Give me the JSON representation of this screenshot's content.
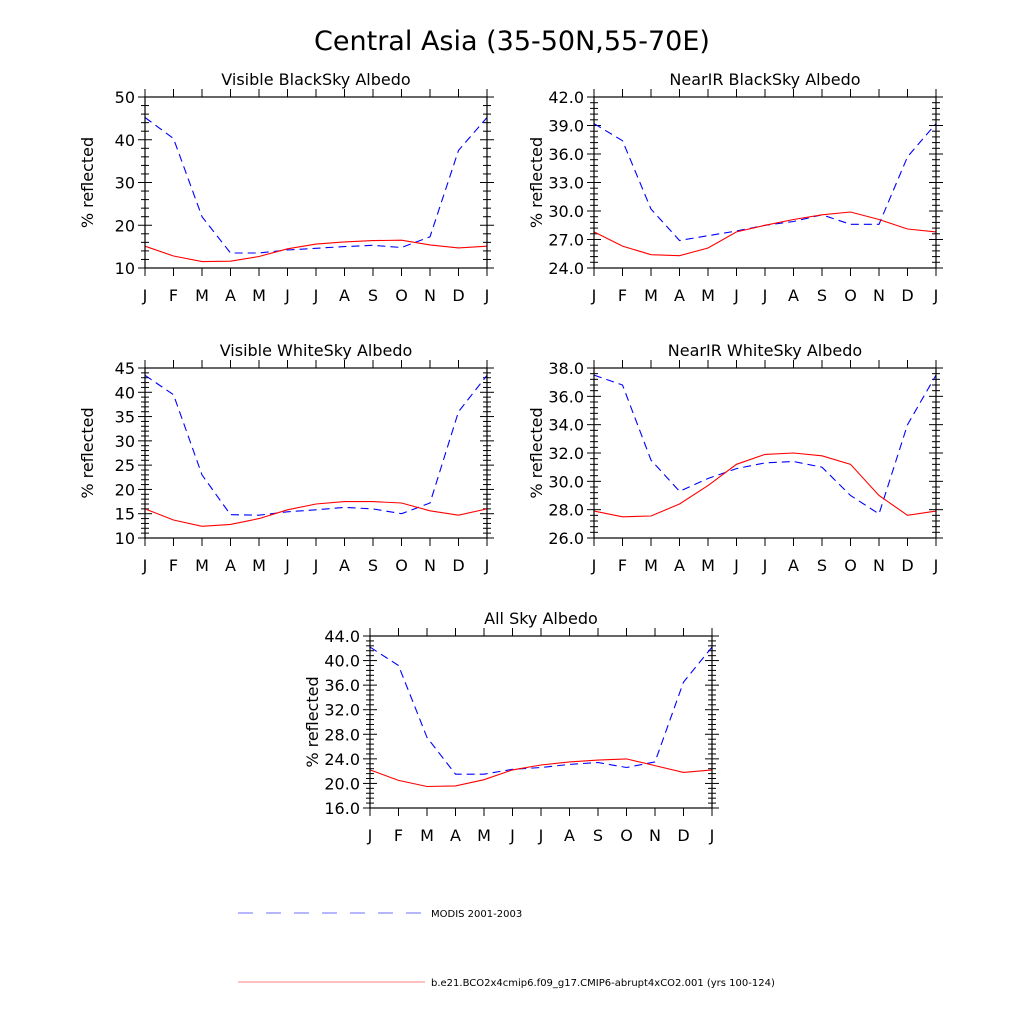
{
  "title": "Central Asia (35-50N,55-70E)",
  "legend": [
    {
      "name": "MODIS 2001-2003",
      "color": "#0000ff",
      "dash": true
    },
    {
      "name": "b.e21.BCO2x4cmip6.f09_g17.CMIP6-abrupt4xCO2.001 (yrs 100-124)",
      "color": "#ff0000",
      "dash": false
    }
  ],
  "chart_data": [
    {
      "type": "line",
      "title": "Visible BlackSky Albedo",
      "ylabel": "% reflected",
      "categories": [
        "J",
        "F",
        "M",
        "A",
        "M",
        "J",
        "J",
        "A",
        "S",
        "O",
        "N",
        "D",
        "J"
      ],
      "ylim": [
        10,
        50
      ],
      "yticks": [
        "10",
        "20",
        "30",
        "40",
        "50"
      ],
      "series": [
        {
          "name": "MODIS 2001-2003",
          "values": [
            45.2,
            40.3,
            22.0,
            13.5,
            13.5,
            14.2,
            14.6,
            15.0,
            15.3,
            14.8,
            17.3,
            37.5,
            45.2
          ]
        },
        {
          "name": "b.e21.BCO2x4cmip6.f09_g17.CMIP6-abrupt4xCO2.001 (yrs 100-124)",
          "values": [
            15.1,
            12.8,
            11.5,
            11.6,
            12.7,
            14.5,
            15.6,
            16.1,
            16.4,
            16.5,
            15.4,
            14.7,
            15.1
          ]
        }
      ]
    },
    {
      "type": "line",
      "title": "NearIR BlackSky Albedo",
      "ylabel": "% reflected",
      "categories": [
        "J",
        "F",
        "M",
        "A",
        "M",
        "J",
        "J",
        "A",
        "S",
        "O",
        "N",
        "D",
        "J"
      ],
      "ylim": [
        24,
        42
      ],
      "yticks": [
        "24.0",
        "27.0",
        "30.0",
        "33.0",
        "36.0",
        "39.0",
        "42.0"
      ],
      "series": [
        {
          "name": "MODIS 2001-2003",
          "values": [
            39.2,
            37.4,
            30.2,
            26.9,
            27.4,
            27.9,
            28.5,
            28.9,
            29.6,
            28.6,
            28.6,
            35.7,
            39.2
          ]
        },
        {
          "name": "b.e21.BCO2x4cmip6.f09_g17.CMIP6-abrupt4xCO2.001 (yrs 100-124)",
          "values": [
            27.8,
            26.3,
            25.4,
            25.3,
            26.1,
            27.8,
            28.5,
            29.1,
            29.6,
            29.9,
            29.1,
            28.1,
            27.8
          ]
        }
      ]
    },
    {
      "type": "line",
      "title": "Visible WhiteSky Albedo",
      "ylabel": "% reflected",
      "categories": [
        "J",
        "F",
        "M",
        "A",
        "M",
        "J",
        "J",
        "A",
        "S",
        "O",
        "N",
        "D",
        "J"
      ],
      "ylim": [
        10,
        45
      ],
      "yticks": [
        "10",
        "15",
        "20",
        "25",
        "30",
        "35",
        "40",
        "45"
      ],
      "series": [
        {
          "name": "MODIS 2001-2003",
          "values": [
            43.5,
            39.5,
            23.0,
            14.8,
            14.7,
            15.4,
            15.8,
            16.3,
            16.0,
            15.0,
            17.2,
            36.0,
            43.5
          ]
        },
        {
          "name": "b.e21.BCO2x4cmip6.f09_g17.CMIP6-abrupt4xCO2.001 (yrs 100-124)",
          "values": [
            16.0,
            13.7,
            12.4,
            12.8,
            14.0,
            15.8,
            17.0,
            17.5,
            17.5,
            17.2,
            15.6,
            14.7,
            16.0
          ]
        }
      ]
    },
    {
      "type": "line",
      "title": "NearIR WhiteSky Albedo",
      "ylabel": "% reflected",
      "categories": [
        "J",
        "F",
        "M",
        "A",
        "M",
        "J",
        "J",
        "A",
        "S",
        "O",
        "N",
        "D",
        "J"
      ],
      "ylim": [
        26,
        38
      ],
      "yticks": [
        "26.0",
        "28.0",
        "30.0",
        "32.0",
        "34.0",
        "36.0",
        "38.0"
      ],
      "series": [
        {
          "name": "MODIS 2001-2003",
          "values": [
            37.5,
            36.8,
            31.5,
            29.3,
            30.2,
            30.9,
            31.3,
            31.4,
            31.0,
            29.0,
            27.7,
            34.0,
            37.5
          ]
        },
        {
          "name": "b.e21.BCO2x4cmip6.f09_g17.CMIP6-abrupt4xCO2.001 (yrs 100-124)",
          "values": [
            27.9,
            27.5,
            27.55,
            28.4,
            29.7,
            31.2,
            31.9,
            32.0,
            31.8,
            31.2,
            29.0,
            27.6,
            27.9
          ]
        }
      ]
    },
    {
      "type": "line",
      "title": "All Sky Albedo",
      "ylabel": "% reflected",
      "categories": [
        "J",
        "F",
        "M",
        "A",
        "M",
        "J",
        "J",
        "A",
        "S",
        "O",
        "N",
        "D",
        "J"
      ],
      "ylim": [
        16,
        44
      ],
      "yticks": [
        "16.0",
        "20.0",
        "24.0",
        "28.0",
        "32.0",
        "36.0",
        "40.0",
        "44.0"
      ],
      "series": [
        {
          "name": "MODIS 2001-2003",
          "values": [
            42.2,
            39.2,
            27.5,
            21.5,
            21.5,
            22.3,
            22.6,
            23.1,
            23.4,
            22.6,
            23.5,
            36.5,
            42.2
          ]
        },
        {
          "name": "b.e21.BCO2x4cmip6.f09_g17.CMIP6-abrupt4xCO2.001 (yrs 100-124)",
          "values": [
            22.2,
            20.5,
            19.5,
            19.6,
            20.6,
            22.2,
            23.0,
            23.5,
            23.8,
            24.0,
            22.9,
            21.8,
            22.2
          ]
        }
      ]
    }
  ]
}
